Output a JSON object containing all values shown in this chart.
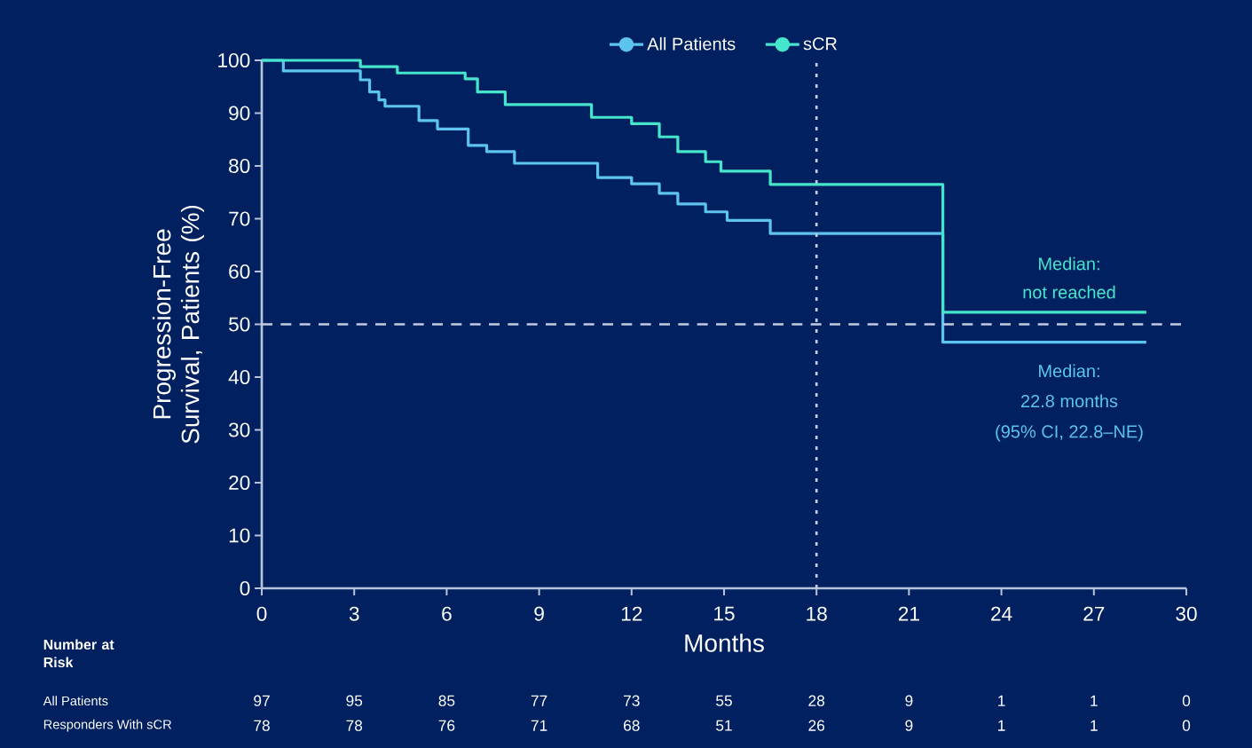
{
  "chart_data": {
    "type": "step",
    "xlabel": "Months",
    "ylabel": "Progression-Free Survival, Patients (%)",
    "xlim": [
      0,
      30
    ],
    "ylim": [
      0,
      100
    ],
    "xticks": [
      0,
      3,
      6,
      9,
      12,
      15,
      18,
      21,
      24,
      27,
      30
    ],
    "yticks": [
      0,
      10,
      20,
      30,
      40,
      50,
      60,
      70,
      80,
      90,
      100
    ],
    "grid": false,
    "legend": "top",
    "series": [
      {
        "name": "All Patients",
        "color": "#5cc4ee",
        "x": [
          0,
          0.7,
          3.2,
          3.5,
          3.8,
          4.0,
          5.1,
          5.7,
          6.7,
          7.3,
          8.2,
          10.9,
          12.0,
          12.9,
          13.5,
          14.4,
          15.1,
          16.5,
          22.1,
          28.7
        ],
        "values": [
          100,
          98,
          96.3,
          94,
          92.5,
          91.3,
          88.6,
          87,
          83.9,
          82.7,
          80.5,
          77.8,
          76.6,
          74.8,
          72.8,
          71.3,
          69.7,
          67.2,
          46.6,
          46.6
        ]
      },
      {
        "name": "sCR",
        "color": "#45e6cc",
        "x": [
          0,
          3.2,
          4.4,
          6.6,
          7.0,
          7.9,
          10.7,
          12.0,
          12.9,
          13.5,
          14.4,
          14.9,
          16.5,
          22.1,
          28.7
        ],
        "values": [
          100,
          98.8,
          97.6,
          96.5,
          94,
          91.6,
          89.2,
          88,
          85.5,
          82.7,
          80.8,
          79,
          76.5,
          52.3,
          52.3
        ]
      }
    ],
    "ref_lines": [
      {
        "axis": "y",
        "value": 50,
        "color": "#c4cce0",
        "line_style": "dashed"
      },
      {
        "axis": "x",
        "value": 18,
        "color": "#c4cce0",
        "line_style": "dotted"
      }
    ],
    "annotations": [
      "Median:",
      "not reached",
      "Median:",
      "22.8 months",
      "(95% CI, 22.8–NE)",
      "Number at Risk",
      "All Patients",
      "Responders With sCR",
      "97",
      "95",
      "85",
      "77",
      "73",
      "55",
      "28",
      "9",
      "1",
      "1",
      "0",
      "78",
      "78",
      "76",
      "71",
      "68",
      "51",
      "26",
      "9",
      "1",
      "1",
      "0"
    ]
  }
}
